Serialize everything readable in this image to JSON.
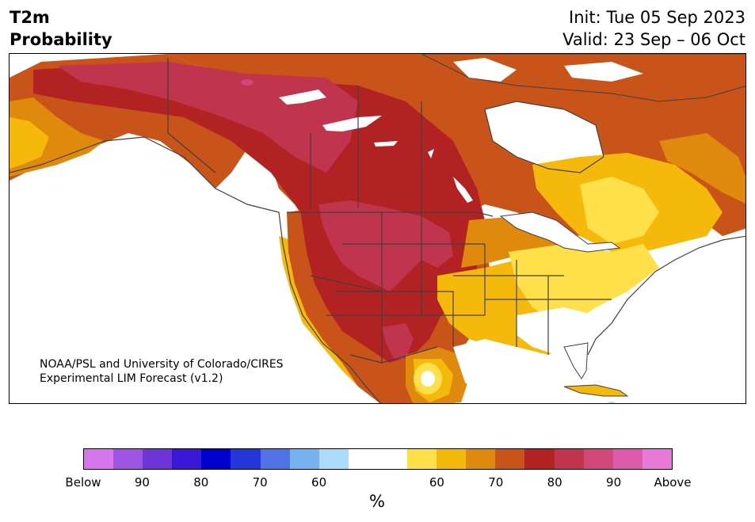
{
  "header": {
    "title_line1": "T2m",
    "title_line2": "Probability",
    "init": "Init: Tue 05 Sep 2023",
    "valid": "Valid: 23 Sep – 06 Oct"
  },
  "credit": {
    "line1": "NOAA/PSL and University of Colorado/CIRES",
    "line2": "Experimental LIM Forecast (v1.2)"
  },
  "colorbar": {
    "colors": [
      "#d676ec",
      "#9d54e2",
      "#6d35d8",
      "#3a18d6",
      "#0000cc",
      "#2536d9",
      "#5074e6",
      "#78b1f1",
      "#acdcfa",
      "#ffffff",
      "#ffffff",
      "#ffe04a",
      "#f4b90a",
      "#e08a0d",
      "#c85419",
      "#b32222",
      "#c0344e",
      "#d14879",
      "#de5aaa",
      "#e879d9"
    ],
    "tick_labels": [
      "Below",
      "90",
      "80",
      "70",
      "60",
      "60",
      "70",
      "80",
      "90",
      "Above"
    ],
    "unit": "%"
  },
  "map": {
    "category_colors": {
      "neutral": "#ffffff",
      "above_50_60": "#ffe04a",
      "above_60_70": "#f4b90a",
      "above_70_80": "#e08a0d",
      "above_80_90": "#c85419",
      "above_90_100": "#b32222",
      "above_very_high": "#c0344e",
      "above_extreme": "#d14879",
      "below_light": "#acdcfa"
    },
    "border_color": "#404040"
  }
}
